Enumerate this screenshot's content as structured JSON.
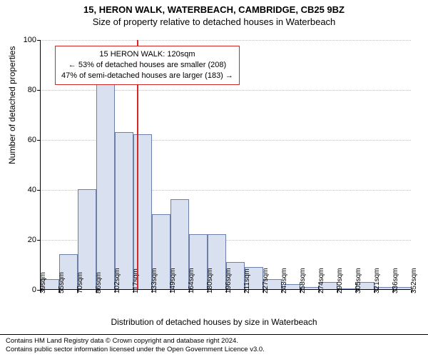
{
  "title_line1": "15, HERON WALK, WATERBEACH, CAMBRIDGE, CB25 9BZ",
  "title_line2": "Size of property relative to detached houses in Waterbeach",
  "ylabel": "Number of detached properties",
  "xlabel": "Distribution of detached houses by size in Waterbeach",
  "footer_line1": "Contains HM Land Registry data © Crown copyright and database right 2024.",
  "footer_line2": "Contains public sector information licensed under the Open Government Licence v3.0.",
  "chart": {
    "type": "histogram",
    "ylim": [
      0,
      100
    ],
    "ytick_step": 20,
    "grid_color": "#bfbfbf",
    "background_color": "#ffffff",
    "bar_fill": "#d9e0f0",
    "bar_stroke": "#6b7fa8",
    "x_bin_width_sqm": 16,
    "x_bin_starts": [
      39,
      55,
      70,
      86,
      102,
      117,
      133,
      149,
      164,
      180,
      196,
      211,
      227,
      243,
      258,
      274,
      290,
      305,
      321,
      336,
      352
    ],
    "bars": [
      4,
      14,
      40,
      82,
      63,
      62,
      30,
      36,
      22,
      22,
      11,
      9,
      4,
      2,
      1,
      3,
      0,
      3,
      1,
      1
    ],
    "x_tick_labels": [
      "39sqm",
      "55sqm",
      "70sqm",
      "86sqm",
      "102sqm",
      "117sqm",
      "133sqm",
      "149sqm",
      "164sqm",
      "180sqm",
      "196sqm",
      "211sqm",
      "227sqm",
      "243sqm",
      "258sqm",
      "274sqm",
      "290sqm",
      "305sqm",
      "321sqm",
      "336sqm",
      "352sqm"
    ],
    "marker": {
      "value_sqm": 120,
      "line_color": "#d62728"
    },
    "annotation": {
      "line1": "15 HERON WALK: 120sqm",
      "line2": "← 53% of detached houses are smaller (208)",
      "line3": "47% of semi-detached houses are larger (183) →",
      "border_color": "#d62728",
      "text_color": "#000000",
      "fontsize": 11
    },
    "title_fontsize": 13,
    "label_fontsize": 12,
    "tick_fontsize": 11
  }
}
